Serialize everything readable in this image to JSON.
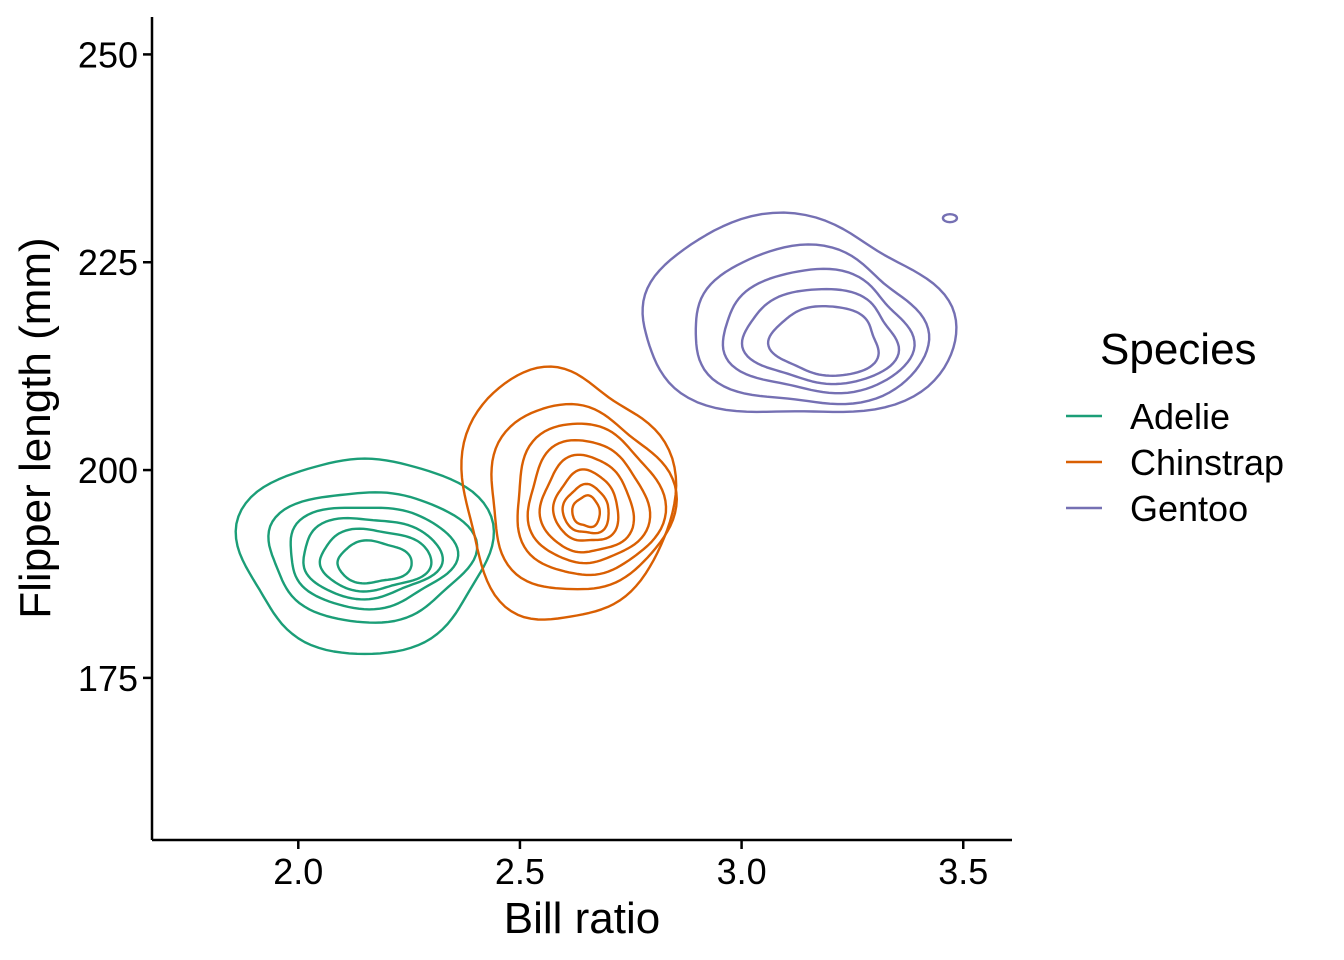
{
  "chart_data": {
    "type": "contour",
    "xlabel": "Bill ratio",
    "ylabel": "Flipper length (mm)",
    "xlim": [
      1.67,
      3.61
    ],
    "ylim": [
      155.5,
      254.5
    ],
    "x_ticks": [
      "2.0",
      "2.5",
      "3.0",
      "3.5"
    ],
    "x_tick_values": [
      2.0,
      2.5,
      3.0,
      3.5
    ],
    "y_ticks": [
      "175",
      "200",
      "225",
      "250"
    ],
    "y_tick_values": [
      175,
      200,
      225,
      250
    ],
    "grid": false,
    "legend": {
      "title": "Species",
      "position": "right",
      "entries": [
        "Adelie",
        "Chinstrap",
        "Gentoo"
      ]
    },
    "series": [
      {
        "name": "Adelie",
        "color": "#1B9E77",
        "center": [
          2.13,
          189.5
        ],
        "contour_levels": [
          {
            "rx": 0.27,
            "ry": 12.3,
            "dx": 0.02,
            "dy": 0.5
          },
          {
            "rx": 0.22,
            "ry": 8.2,
            "dx": 0.03,
            "dy": 0.3
          },
          {
            "rx": 0.18,
            "ry": 6.4,
            "dx": 0.03,
            "dy": 0.2
          },
          {
            "rx": 0.15,
            "ry": 5.0,
            "dx": 0.03,
            "dy": 0.0
          },
          {
            "rx": 0.12,
            "ry": 3.8,
            "dx": 0.04,
            "dy": -0.3
          },
          {
            "rx": 0.08,
            "ry": 2.6,
            "dx": 0.04,
            "dy": -0.6
          }
        ]
      },
      {
        "name": "Chinstrap",
        "color": "#D95F02",
        "center": [
          2.62,
          196.5
        ],
        "contour_levels": [
          {
            "rx": 0.23,
            "ry": 15.5,
            "dx": -0.02,
            "dy": 0.5
          },
          {
            "rx": 0.2,
            "ry": 11.5,
            "dx": 0.01,
            "dy": 0.0
          },
          {
            "rx": 0.16,
            "ry": 9.4,
            "dx": 0.03,
            "dy": -0.2
          },
          {
            "rx": 0.13,
            "ry": 7.6,
            "dx": 0.03,
            "dy": -0.5
          },
          {
            "rx": 0.1,
            "ry": 6.0,
            "dx": 0.03,
            "dy": -0.8
          },
          {
            "rx": 0.07,
            "ry": 4.4,
            "dx": 0.03,
            "dy": -1.0
          },
          {
            "rx": 0.05,
            "ry": 3.0,
            "dx": 0.03,
            "dy": -1.3
          },
          {
            "rx": 0.03,
            "ry": 1.9,
            "dx": 0.03,
            "dy": -1.5
          }
        ]
      },
      {
        "name": "Gentoo",
        "color": "#7570B3",
        "center": [
          3.12,
          217.0
        ],
        "contour_levels": [
          {
            "rx": 0.35,
            "ry": 12.0,
            "dx": 0.0,
            "dy": 1.0
          },
          {
            "rx": 0.26,
            "ry": 9.5,
            "dx": 0.03,
            "dy": 0.0
          },
          {
            "rx": 0.21,
            "ry": 7.4,
            "dx": 0.05,
            "dy": -0.5
          },
          {
            "rx": 0.17,
            "ry": 5.7,
            "dx": 0.06,
            "dy": -1.0
          },
          {
            "rx": 0.12,
            "ry": 4.2,
            "dx": 0.07,
            "dy": -1.5
          }
        ],
        "outliers": [
          {
            "x": 3.47,
            "y": 230.3
          }
        ]
      }
    ]
  }
}
